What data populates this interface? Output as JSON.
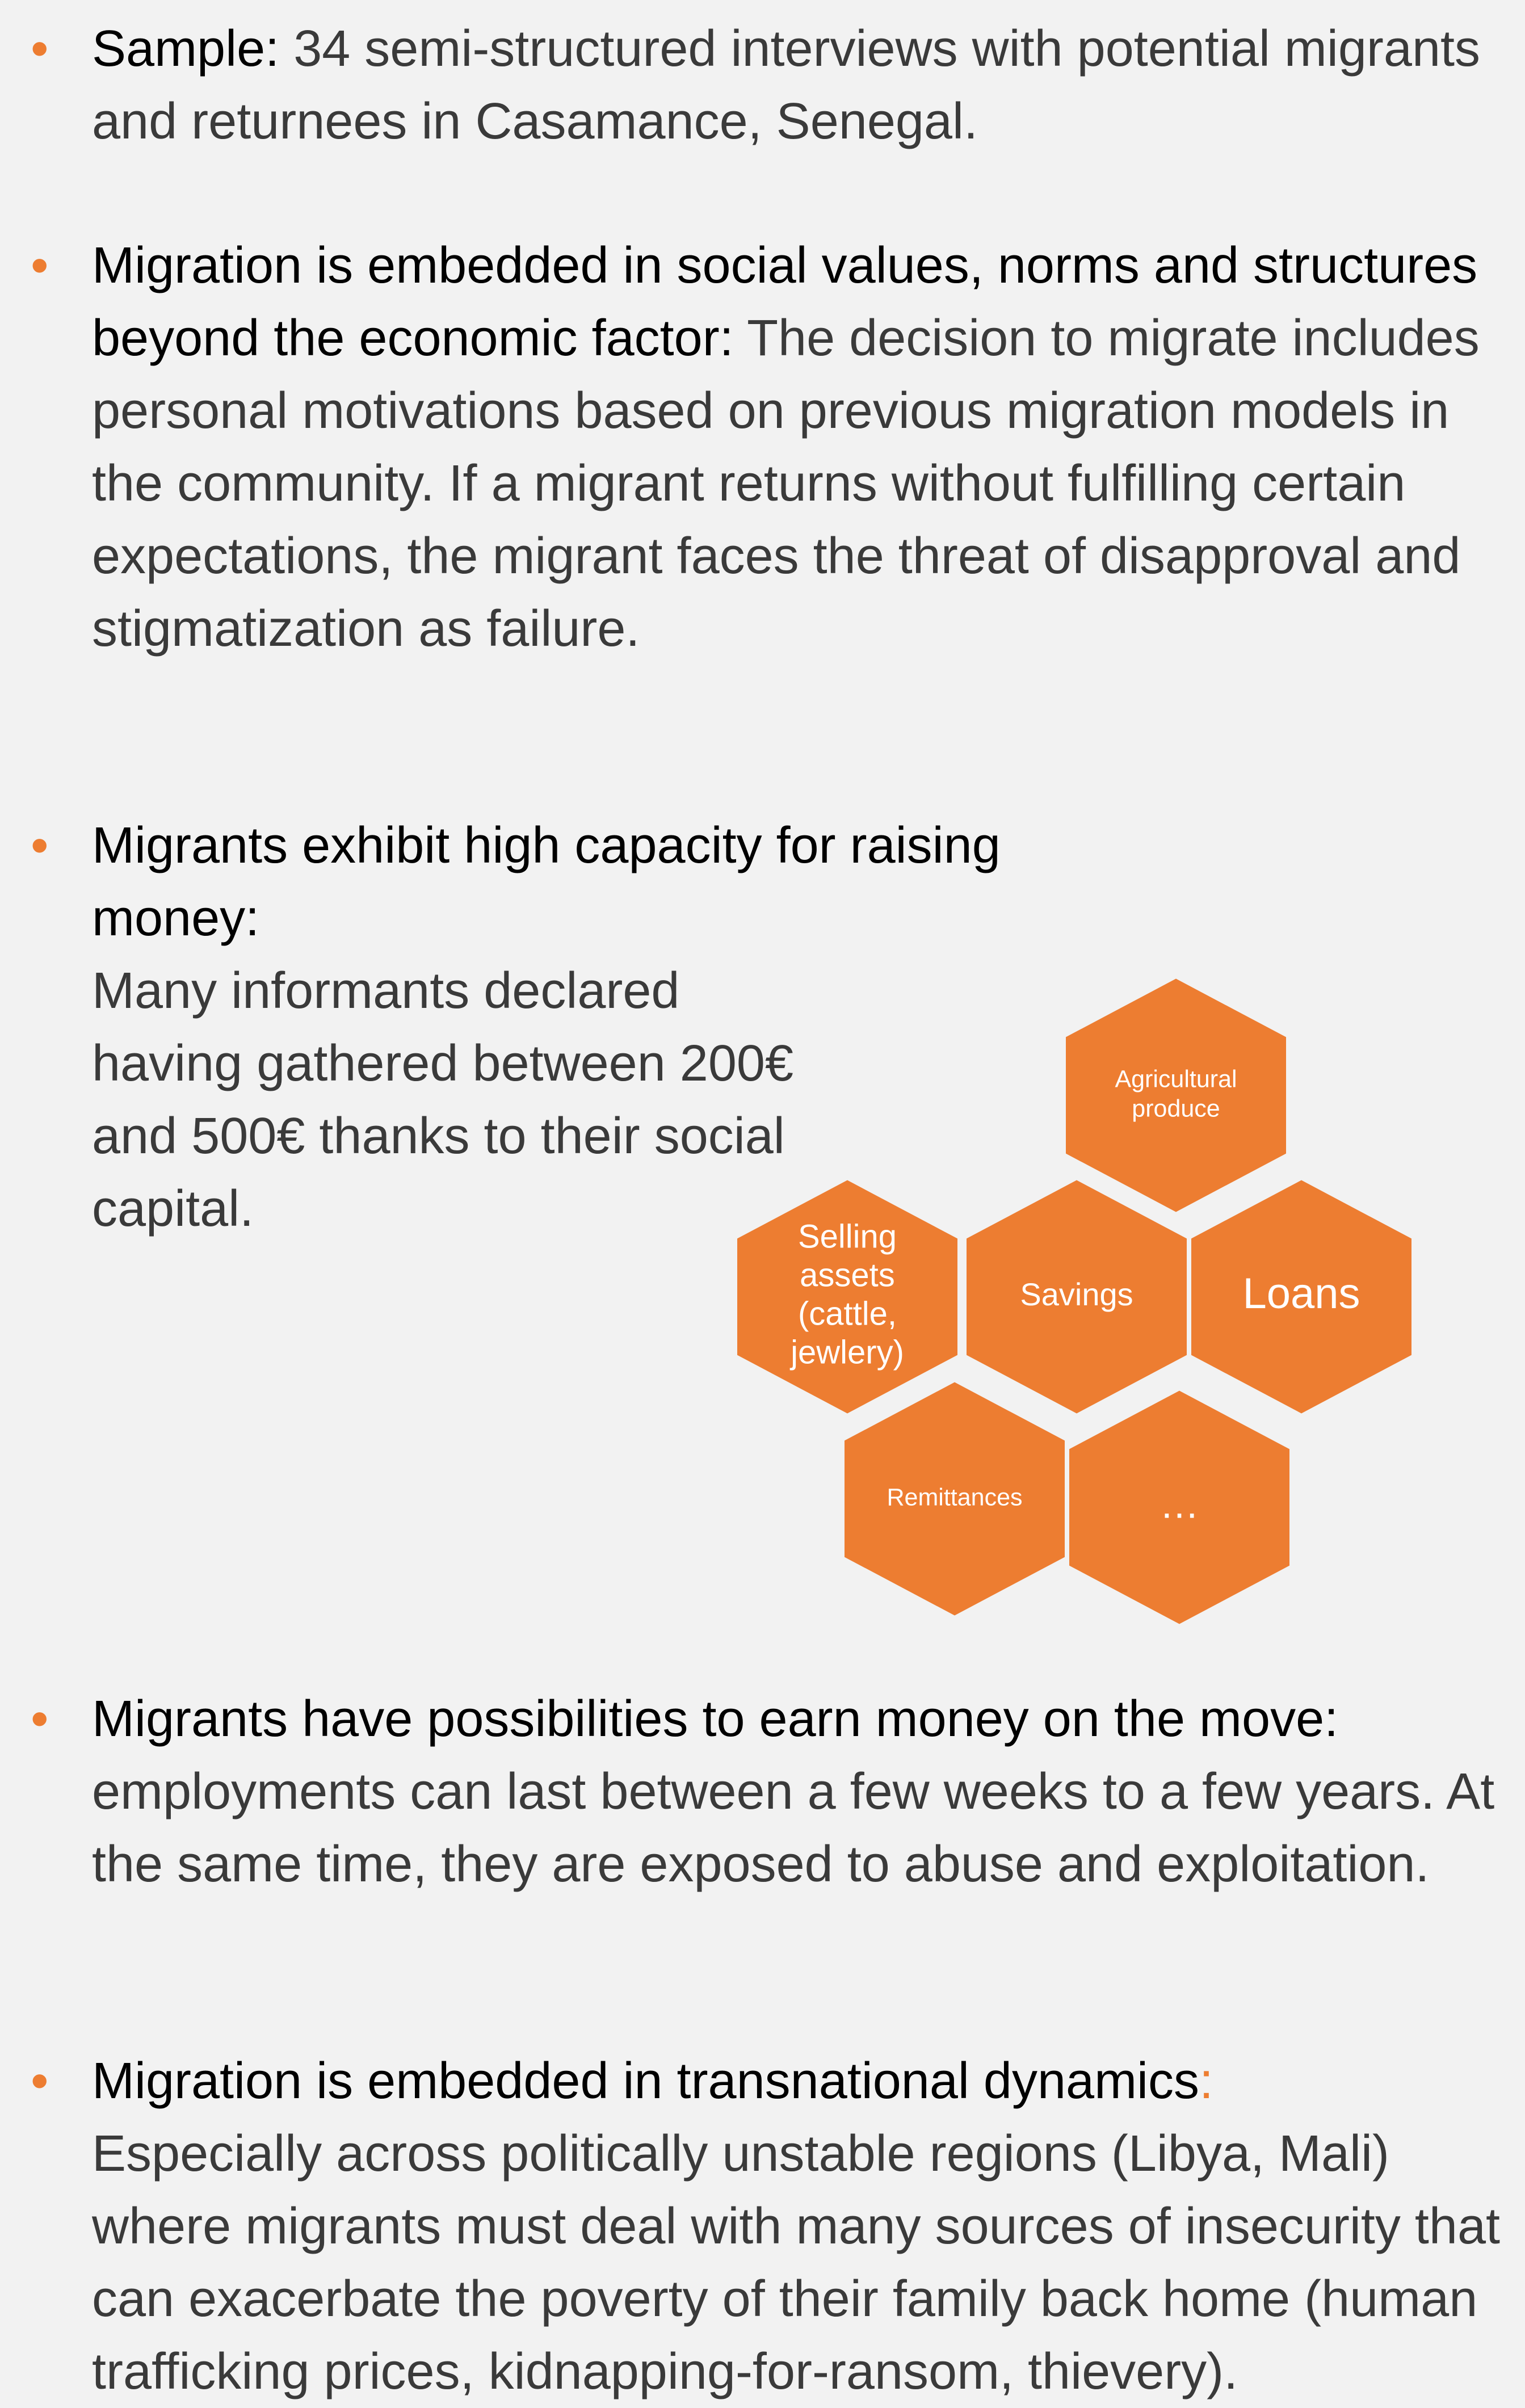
{
  "bullets": [
    {
      "heading": "Sample:",
      "text": "34 semi-structured interviews with potential migrants and returnees in Casamance, Senegal."
    },
    {
      "heading": "Migration is embedded in social values, norms and structures beyond the economic factor:",
      "text": "The decision to migrate includes personal motivations based on previous migration models in the community. If a migrant returns without fulfilling certain expectations, the migrant faces the threat of disapproval and stigmatization as failure."
    },
    {
      "heading": "Migrants exhibit high capacity for raising money:",
      "text": "Many informants declared having gathered between 200€ and 500€ thanks to their social capital."
    },
    {
      "heading": "Migrants have possibilities to earn money on the move:",
      "text": "employments can last between a few weeks to a few years. At the same time, they are exposed to abuse and exploitation."
    },
    {
      "heading": "Migration is embedded in transnational dynamics",
      "colon": ":",
      "text": "Especially across politically unstable regions (Libya, Mali) where migrants must deal with many sources of insecurity that can exacerbate the poverty of their family back home (human trafficking prices, kidnapping-for-ransom, thievery)."
    }
  ],
  "hexagons": [
    {
      "lines": [
        "Agricultural",
        "produce"
      ]
    },
    {
      "lines": [
        "Selling",
        "assets",
        "(cattle,",
        "jewlery)"
      ]
    },
    {
      "lines": [
        "Savings"
      ]
    },
    {
      "lines": [
        "Loans"
      ]
    },
    {
      "lines": [
        "Remittances"
      ]
    },
    {
      "lines": [
        "…"
      ]
    }
  ]
}
